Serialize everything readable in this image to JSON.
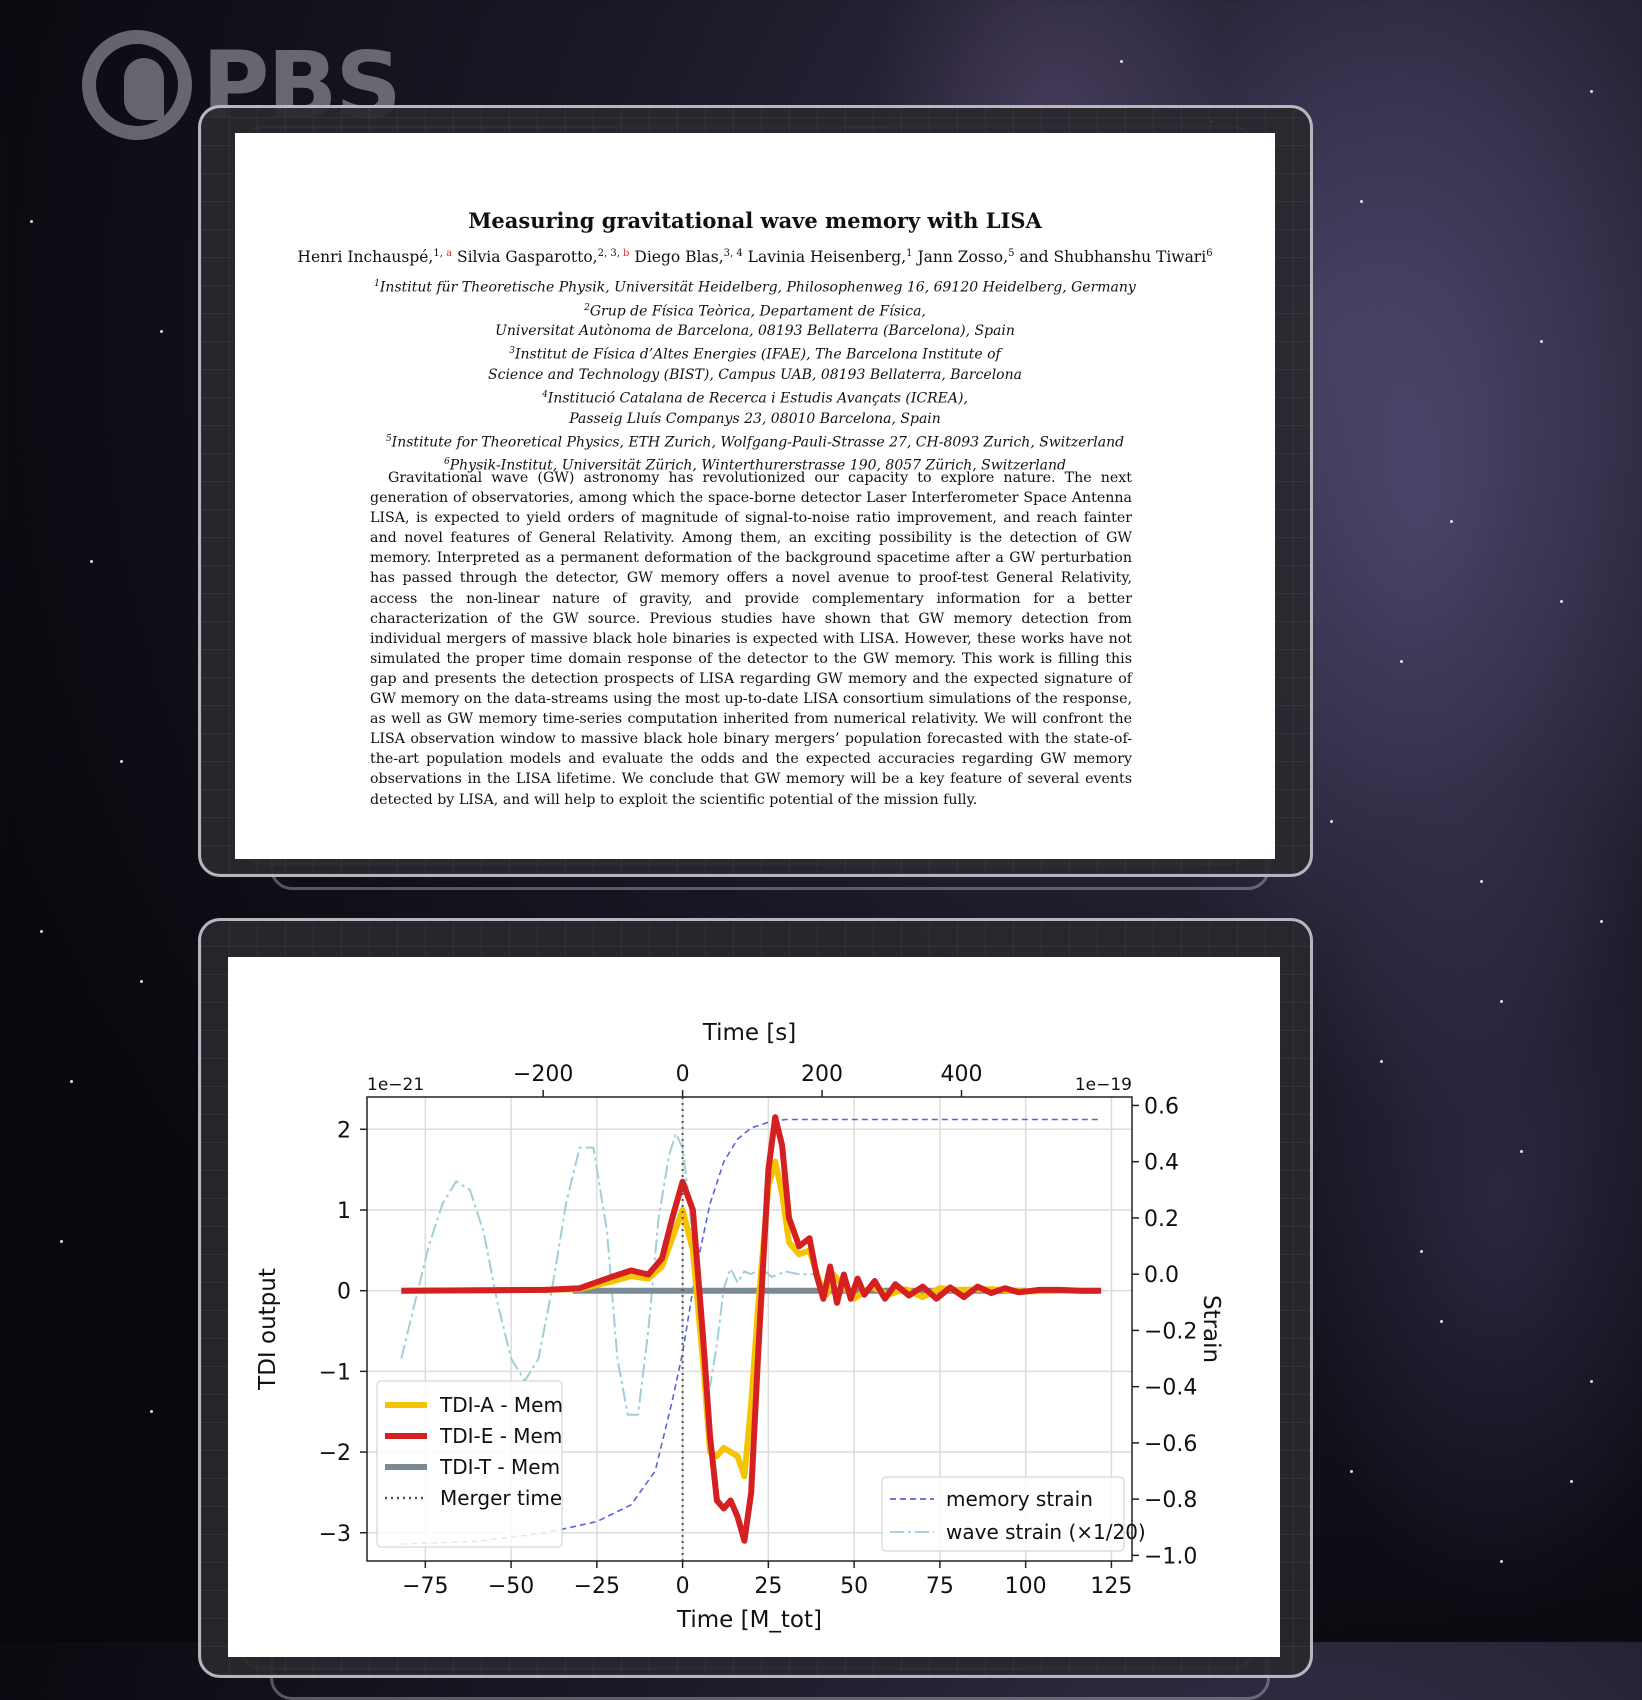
{
  "logo": {
    "text": "PBS"
  },
  "paper": {
    "title": "Measuring gravitational wave memory with LISA",
    "authors": [
      {
        "name": "Henri Inchauspé,",
        "sup": "1,",
        "mark": "a"
      },
      {
        "name": "Silvia Gasparotto,",
        "sup": "2, 3,",
        "mark": "b"
      },
      {
        "name": "Diego Blas,",
        "sup": "3, 4",
        "mark": ""
      },
      {
        "name": "Lavinia Heisenberg,",
        "sup": "1",
        "mark": ""
      },
      {
        "name": "Jann Zosso,",
        "sup": "5",
        "mark": ""
      },
      {
        "name": "and Shubhanshu Tiwari",
        "sup": "6",
        "mark": ""
      }
    ],
    "affiliations": [
      {
        "sup": "1",
        "text": "Institut für Theoretische Physik, Universität Heidelberg, Philosophenweg 16, 69120 Heidelberg, Germany"
      },
      {
        "sup": "2",
        "text": "Grup de Física Teòrica, Departament de Física,"
      },
      {
        "sup": "",
        "text": "Universitat Autònoma de Barcelona, 08193 Bellaterra (Barcelona), Spain"
      },
      {
        "sup": "3",
        "text": "Institut de Física d’Altes Energies (IFAE), The Barcelona Institute of"
      },
      {
        "sup": "",
        "text": "Science and Technology (BIST), Campus UAB, 08193 Bellaterra, Barcelona"
      },
      {
        "sup": "4",
        "text": "Institució Catalana de Recerca i Estudis Avançats (ICREA),"
      },
      {
        "sup": "",
        "text": "Passeig Lluís Companys 23, 08010 Barcelona, Spain"
      },
      {
        "sup": "5",
        "text": "Institute for Theoretical Physics, ETH Zurich, Wolfgang-Pauli-Strasse 27, CH-8093 Zurich, Switzerland"
      },
      {
        "sup": "6",
        "text": "Physik-Institut, Universität Zürich, Winterthurerstrasse 190, 8057 Zürich, Switzerland"
      }
    ],
    "abstract": "Gravitational wave (GW) astronomy has revolutionized our capacity to explore nature. The next generation of observatories, among which the space-borne detector Laser Interferometer Space Antenna LISA, is expected to yield orders of magnitude of signal-to-noise ratio improvement, and reach fainter and novel features of General Relativity. Among them, an exciting possibility is the detection of GW memory. Interpreted as a permanent deformation of the background spacetime after a GW perturbation has passed through the detector, GW memory offers a novel avenue to proof-test General Relativity, access the non-linear nature of gravity, and provide complementary information for a better characterization of the GW source. Previous studies have shown that GW memory detection from individual mergers of massive black hole binaries is expected with LISA. However, these works have not simulated the proper time domain response of the detector to the GW memory. This work is filling this gap and presents the detection prospects of LISA regarding GW memory and the expected signature of GW memory on the data-streams using the most up-to-date LISA consortium simulations of the response, as well as GW memory time-series computation inherited from numerical relativity. We will confront the LISA observation window to massive black hole binary mergers’ population forecasted with the state-of-the-art population models and evaluate the odds and the expected accuracies regarding GW memory observations in the LISA lifetime. We conclude that GW memory will be a key feature of several events detected by LISA, and will help to exploit the scientific potential of the mission fully."
  },
  "chart_data": {
    "type": "line",
    "xlabel": "Time [M_tot]",
    "xlabel_top": "Time [s]",
    "ylabel_left": "TDI output",
    "ylabel_right": "Strain",
    "offset_left": "1e−21",
    "offset_right": "1e−19",
    "xlim": [
      -92,
      131
    ],
    "ylim_left": [
      -3.35,
      2.4
    ],
    "ylim_right": [
      -1.02,
      0.63
    ],
    "xticks": [
      "−75",
      "−50",
      "−25",
      "0",
      "25",
      "50",
      "75",
      "100",
      "125"
    ],
    "xtick_values": [
      -75,
      -50,
      -25,
      0,
      25,
      50,
      75,
      100,
      125
    ],
    "xticks_top": [
      "−200",
      "0",
      "200",
      "400"
    ],
    "xtick_top_values": [
      -200,
      0,
      200,
      400
    ],
    "top_axis_scale": 4.92,
    "yticks_left": [
      "−3",
      "−2",
      "−1",
      "0",
      "1",
      "2"
    ],
    "ytick_left_values": [
      -3,
      -2,
      -1,
      0,
      1,
      2
    ],
    "yticks_right": [
      "−1.0",
      "−0.8",
      "−0.6",
      "−0.4",
      "−0.2",
      "0.0",
      "0.2",
      "0.4",
      "0.6"
    ],
    "ytick_right_values": [
      -1.0,
      -0.8,
      -0.6,
      -0.4,
      -0.2,
      0.0,
      0.2,
      0.4,
      0.6
    ],
    "grid": true,
    "merger_time": 0,
    "series_left": [
      {
        "name": "TDI-A - Mem",
        "color": "#f5c400",
        "x": [
          -82,
          -40,
          -30,
          -20,
          -15,
          -10,
          -6,
          -3,
          0,
          3,
          6,
          8,
          10,
          12,
          14,
          16,
          18,
          20,
          22,
          25,
          27,
          29,
          31,
          34,
          37,
          40,
          42,
          44,
          47,
          50,
          55,
          60,
          65,
          70,
          75,
          80,
          90,
          100,
          110,
          122
        ],
        "y": [
          0,
          0.01,
          0.02,
          0.12,
          0.18,
          0.15,
          0.3,
          0.65,
          1.0,
          0.5,
          -0.9,
          -2.0,
          -2.05,
          -1.95,
          -2.0,
          -2.05,
          -2.3,
          -1.4,
          -0.2,
          1.3,
          1.6,
          1.2,
          0.6,
          0.45,
          0.5,
          0.1,
          -0.05,
          0.2,
          0.05,
          -0.1,
          0.05,
          -0.05,
          0.02,
          -0.08,
          0.03,
          0.01,
          0.02,
          -0.01,
          0.0,
          0.0
        ]
      },
      {
        "name": "TDI-E - Mem",
        "color": "#d42020",
        "x": [
          -82,
          -40,
          -30,
          -20,
          -15,
          -10,
          -6,
          -3,
          0,
          3,
          6,
          8,
          10,
          12,
          14,
          16,
          18,
          20,
          22,
          25,
          27,
          29,
          31,
          34,
          37,
          39,
          41,
          43,
          45,
          47,
          49,
          51,
          53,
          56,
          59,
          62,
          66,
          70,
          74,
          78,
          82,
          86,
          90,
          94,
          98,
          104,
          110,
          116,
          122
        ],
        "y": [
          0,
          0.01,
          0.03,
          0.18,
          0.25,
          0.2,
          0.4,
          0.9,
          1.35,
          1.0,
          -0.6,
          -1.8,
          -2.6,
          -2.7,
          -2.6,
          -2.8,
          -3.1,
          -2.5,
          -0.8,
          1.5,
          2.15,
          1.8,
          0.9,
          0.55,
          0.65,
          0.2,
          -0.1,
          0.3,
          -0.15,
          0.2,
          -0.1,
          0.15,
          -0.05,
          0.12,
          -0.1,
          0.08,
          -0.06,
          0.05,
          -0.1,
          0.04,
          -0.08,
          0.05,
          -0.03,
          0.03,
          -0.02,
          0.01,
          0.01,
          0.0,
          0.0
        ]
      },
      {
        "name": "TDI-T - Mem",
        "color": "#7a8a96",
        "x": [
          -32,
          100
        ],
        "y": [
          0,
          0
        ]
      }
    ],
    "series_right": [
      {
        "name": "memory strain",
        "color": "#5566dd",
        "x": [
          -82,
          -60,
          -40,
          -25,
          -15,
          -8,
          -3,
          0,
          4,
          8,
          12,
          16,
          20,
          25,
          30,
          40,
          60,
          80,
          100,
          122
        ],
        "y": [
          -0.96,
          -0.95,
          -0.92,
          -0.88,
          -0.82,
          -0.7,
          -0.45,
          -0.28,
          0.02,
          0.25,
          0.4,
          0.48,
          0.52,
          0.54,
          0.55,
          0.55,
          0.55,
          0.55,
          0.55,
          0.55
        ]
      },
      {
        "name": "wave strain (×1/20)",
        "color": "#9fcfd8",
        "x": [
          -82,
          -78,
          -74,
          -70,
          -66,
          -62,
          -58,
          -54,
          -50,
          -46,
          -42,
          -38,
          -34,
          -30,
          -26,
          -22,
          -19,
          -16,
          -13,
          -10,
          -7,
          -4,
          -2,
          0,
          2,
          4,
          6,
          8,
          10,
          12,
          14,
          16,
          18,
          20,
          23,
          26,
          30,
          34,
          40
        ],
        "y": [
          -0.3,
          -0.1,
          0.1,
          0.25,
          0.33,
          0.3,
          0.15,
          -0.1,
          -0.3,
          -0.38,
          -0.3,
          -0.05,
          0.25,
          0.45,
          0.45,
          0.15,
          -0.3,
          -0.5,
          -0.5,
          -0.2,
          0.2,
          0.42,
          0.5,
          0.45,
          0.25,
          -0.1,
          -0.3,
          -0.4,
          -0.25,
          -0.05,
          0.02,
          -0.03,
          0.01,
          0.0,
          0.02,
          -0.01,
          0.01,
          0.0,
          0.0
        ]
      }
    ],
    "legend_left": [
      {
        "label": "TDI-A - Mem",
        "color": "#f5c400",
        "style": "solid"
      },
      {
        "label": "TDI-E - Mem",
        "color": "#d42020",
        "style": "solid"
      },
      {
        "label": "TDI-T - Mem",
        "color": "#7a8a96",
        "style": "solid"
      },
      {
        "label": "Merger time",
        "color": "#555555",
        "style": "dotted"
      }
    ],
    "legend_right": [
      {
        "label": "memory strain",
        "color": "#5566dd",
        "style": "dashed"
      },
      {
        "label": "wave strain (×1/20)",
        "color": "#9fcfd8",
        "style": "dashdot"
      }
    ],
    "legend_left_position": "lower-left",
    "legend_right_position": "lower-right"
  }
}
